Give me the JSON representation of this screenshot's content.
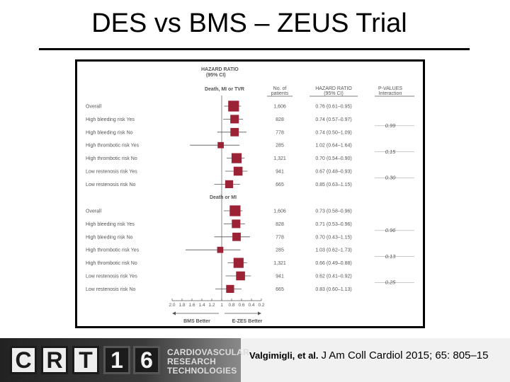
{
  "slide": {
    "title": "DES vs BMS – ZEUS Trial"
  },
  "footer": {
    "logo_letters": [
      "C",
      "R",
      "T",
      "1",
      "6"
    ],
    "logo_subtitle": [
      "CARDIOVASCULAR",
      "RESEARCH",
      "TECHNOLOGIES"
    ],
    "citation_authors": "Valgimigli, et al.",
    "citation_journal": "J Am Coll Cardiol 2015; 65: 805–15"
  },
  "chart_data": {
    "type": "forest",
    "header": {
      "hr_title": "HAZARD RATIO (95% CI)",
      "n_label": "No. of patients",
      "hr_col_label": "HAZARD RATIO (95% CI)",
      "p_label": "P-VALUES",
      "p_sublabel": "Interaction"
    },
    "x_axis": {
      "ticks": [
        "2.0",
        "1.8",
        "1.6",
        "1.4",
        "1.2",
        "1",
        "0.8",
        "0.6",
        "0.4",
        "0.2"
      ],
      "xlim": [
        2.0,
        0.2
      ],
      "reversed": true,
      "left_label": "BMS Better",
      "right_label": "E-ZES Better"
    },
    "marker_color": "#9b2335",
    "sections": [
      {
        "title": "Death, MI or TVR",
        "rows": [
          {
            "label": "Overall",
            "n": "1,606",
            "hr": 0.76,
            "lo": 0.61,
            "hi": 0.95,
            "hr_text": "0.76 (0.61–0.95)"
          },
          {
            "label": "High bleeding risk Yes",
            "n": "828",
            "hr": 0.74,
            "lo": 0.57,
            "hi": 0.97,
            "hr_text": "0.74 (0.57–0.97)"
          },
          {
            "label": "High bleeding risk No",
            "n": "778",
            "hr": 0.74,
            "lo": 0.5,
            "hi": 1.09,
            "hr_text": "0.74 (0.50–1.09)"
          },
          {
            "label": "High thrombotic risk Yes",
            "n": "285",
            "hr": 1.02,
            "lo": 0.64,
            "hi": 1.64,
            "hr_text": "1.02 (0.64–1.64)"
          },
          {
            "label": "High thrombotic risk No",
            "n": "1,321",
            "hr": 0.7,
            "lo": 0.54,
            "hi": 0.9,
            "hr_text": "0.70 (0.54–0.90)"
          },
          {
            "label": "Low restenosis risk Yes",
            "n": "941",
            "hr": 0.67,
            "lo": 0.48,
            "hi": 0.93,
            "hr_text": "0.67 (0.48–0.93)"
          },
          {
            "label": "Low restenosis risk No",
            "n": "665",
            "hr": 0.85,
            "lo": 0.63,
            "hi": 1.15,
            "hr_text": "0.85 (0.63–1.15)"
          }
        ],
        "p_values": [
          "0.99",
          "0.15",
          "0.30"
        ]
      },
      {
        "title": "Death or MI",
        "rows": [
          {
            "label": "Overall",
            "n": "1,606",
            "hr": 0.73,
            "lo": 0.58,
            "hi": 0.96,
            "hr_text": "0.73 (0.58–0.96)"
          },
          {
            "label": "High bleeding risk Yes",
            "n": "828",
            "hr": 0.71,
            "lo": 0.53,
            "hi": 0.96,
            "hr_text": "0.71 (0.53–0.96)"
          },
          {
            "label": "High bleeding risk No",
            "n": "778",
            "hr": 0.7,
            "lo": 0.43,
            "hi": 1.15,
            "hr_text": "0.70 (0.43–1.15)"
          },
          {
            "label": "High thrombotic risk Yes",
            "n": "285",
            "hr": 1.03,
            "lo": 0.62,
            "hi": 1.73,
            "hr_text": "1.03 (0.62–1.73)"
          },
          {
            "label": "High thrombotic risk No",
            "n": "1,321",
            "hr": 0.66,
            "lo": 0.49,
            "hi": 0.88,
            "hr_text": "0.66 (0.49–0.88)"
          },
          {
            "label": "Low restenosis risk Yes",
            "n": "941",
            "hr": 0.62,
            "lo": 0.41,
            "hi": 0.92,
            "hr_text": "0.62 (0.41–0.92)"
          },
          {
            "label": "Low restenosis risk No",
            "n": "665",
            "hr": 0.83,
            "lo": 0.6,
            "hi": 1.13,
            "hr_text": "0.83 (0.60–1.13)"
          }
        ],
        "p_values": [
          "0.96",
          "0.13",
          "0.25"
        ]
      }
    ]
  }
}
